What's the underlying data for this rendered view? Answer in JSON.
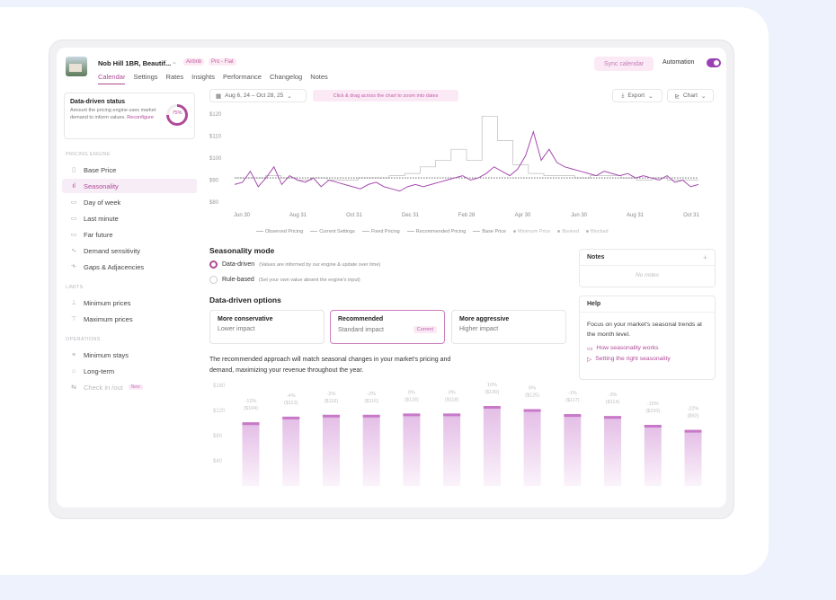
{
  "page": {
    "partial_text": "e"
  },
  "header": {
    "listing_title": "Nob Hill 1BR, Beautif...",
    "badges": [
      "Airbnb",
      "Pro - Fiat"
    ],
    "tabs": [
      "Calendar",
      "Settings",
      "Rates",
      "Insights",
      "Performance",
      "Changelog",
      "Notes"
    ],
    "active_tab": "Calendar",
    "sync_label": "Sync calendar",
    "automation_label": "Automation",
    "automation_on": true
  },
  "sidebar": {
    "status": {
      "title": "Data-driven status",
      "description": "Amount the pricing engine uses market demand to inform values.",
      "reconfigure": "Reconfigure",
      "percent": "75%"
    },
    "sections": {
      "pricing_engine": "PRICING ENGINE",
      "limits": "LIMITS",
      "operations": "OPERATIONS"
    },
    "pricing_items": [
      {
        "label": "Base Price",
        "icon": "price-tag-icon"
      },
      {
        "label": "Seasonality",
        "icon": "bar-chart-icon",
        "active": true
      },
      {
        "label": "Day of week",
        "icon": "calendar-icon"
      },
      {
        "label": "Last minute",
        "icon": "clock-icon"
      },
      {
        "label": "Far future",
        "icon": "calendar-range-icon"
      },
      {
        "label": "Demand sensitivity",
        "icon": "wave-icon"
      },
      {
        "label": "Gaps & Adjacencies",
        "icon": "gap-icon"
      }
    ],
    "limit_items": [
      {
        "label": "Minimum prices",
        "icon": "arrow-down-icon"
      },
      {
        "label": "Maximum prices",
        "icon": "arrow-up-icon"
      }
    ],
    "operation_items": [
      {
        "label": "Minimum stays",
        "icon": "moon-icon"
      },
      {
        "label": "Long-term",
        "icon": "home-icon"
      },
      {
        "label": "Check in /out",
        "icon": "door-icon",
        "dim": true,
        "badge": "New"
      }
    ]
  },
  "toolbar": {
    "date_range": "Aug 6, 24 – Oct 28, 25",
    "hint": "Click & drag across the chart to zoom into dates",
    "export_label": "Export",
    "chart_label": "Chart"
  },
  "price_chart": {
    "y_ticks": [
      "$120",
      "$110",
      "$100",
      "$90",
      "$80"
    ],
    "x_ticks": [
      "Jun 30",
      "Aug 31",
      "Oct 31",
      "Dec 31",
      "Feb 28",
      "Apr 30",
      "Jun 30",
      "Aug 31",
      "Oct 31"
    ],
    "ylim": [
      80,
      120
    ],
    "base_price": 91,
    "observed": [
      88,
      89,
      94,
      87,
      91,
      96,
      88,
      92,
      90,
      89,
      91,
      87,
      90,
      89,
      88,
      87,
      86,
      88,
      89,
      87,
      86,
      85,
      87,
      88,
      87,
      88,
      89,
      90,
      91,
      92,
      90,
      91,
      93,
      96,
      94,
      92,
      95,
      101,
      112,
      99,
      104,
      98,
      96,
      95,
      94,
      93,
      92,
      94,
      93,
      92,
      93,
      91,
      92,
      91,
      90,
      92,
      89,
      90,
      87,
      88
    ],
    "settings_steps": [
      91,
      91,
      92,
      91,
      90,
      91,
      90,
      90,
      91,
      91,
      92,
      93,
      96,
      99,
      104,
      99,
      119,
      108,
      97,
      93,
      92,
      92,
      91,
      92,
      92,
      91,
      90,
      91,
      90,
      90
    ],
    "legend": [
      "Observed Pricing",
      "Current Settings",
      "Fixed Pricing",
      "Recommended Pricing",
      "Base Price",
      "Minimum Price",
      "Booked",
      "Blocked"
    ]
  },
  "seasonality": {
    "mode_title": "Seasonality mode",
    "modes": [
      {
        "label": "Data-driven",
        "note": "(Values are informed by our engine & update over time)",
        "selected": true
      },
      {
        "label": "Rule-based",
        "note": "(Set your own value absent the engine's input)",
        "selected": false
      }
    ],
    "options_title": "Data-driven options",
    "options": [
      {
        "name": "More conservative",
        "impact": "Lower impact"
      },
      {
        "name": "Recommended",
        "impact": "Standard impact",
        "badge": "Current",
        "selected": true
      },
      {
        "name": "More aggressive",
        "impact": "Higher impact"
      }
    ],
    "explanation": "The recommended approach will match seasonal changes in your market's pricing and demand, maximizing your revenue throughout the year."
  },
  "seasonal_bars": {
    "y_ticks": [
      "$160",
      "$120",
      "$80",
      "$40"
    ],
    "bars": [
      {
        "pct": "-12%",
        "price": "($104)",
        "value": 104
      },
      {
        "pct": "-4%",
        "price": "($113)",
        "value": 113
      },
      {
        "pct": "-2%",
        "price": "($116)",
        "value": 116
      },
      {
        "pct": "-2%",
        "price": "($116)",
        "value": 116
      },
      {
        "pct": "0%",
        "price": "($118)",
        "value": 118
      },
      {
        "pct": "0%",
        "price": "($118)",
        "value": 118
      },
      {
        "pct": "10%",
        "price": "($130)",
        "value": 130
      },
      {
        "pct": "6%",
        "price": "($125)",
        "value": 125
      },
      {
        "pct": "-1%",
        "price": "($117)",
        "value": 117
      },
      {
        "pct": "-3%",
        "price": "($114)",
        "value": 114
      },
      {
        "pct": "-15%",
        "price": "($100)",
        "value": 100
      },
      {
        "pct": "-22%",
        "price": "($92)",
        "value": 92
      }
    ]
  },
  "notes": {
    "title": "Notes",
    "empty": "No notes"
  },
  "help": {
    "title": "Help",
    "text": "Focus on your market's seasonal trends at the month level.",
    "links": [
      "How seasonality works",
      "Setting the right seasonality"
    ]
  }
}
